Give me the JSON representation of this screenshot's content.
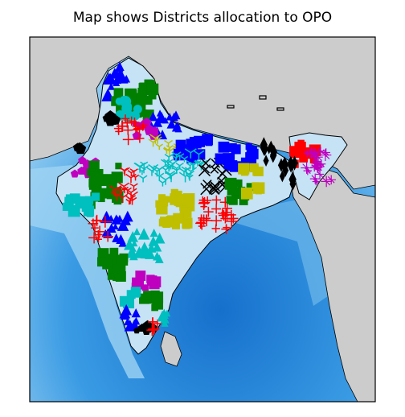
{
  "title": "Map shows Districts allocation to OPO",
  "colors": {
    "land": "#cccccc",
    "shallow_sea": "#b8dff5",
    "deep_sea": "#1a7fd6",
    "mid_sea": "#4fa8e6",
    "india_fill": "#c6e2f5",
    "frame": "#000000"
  },
  "marker_groups": [
    {
      "name": "green",
      "color": "#007f00"
    },
    {
      "name": "blue",
      "color": "#0000ff"
    },
    {
      "name": "red",
      "color": "#ff0000"
    },
    {
      "name": "cyan",
      "color": "#00bfbf"
    },
    {
      "name": "magenta",
      "color": "#bf00bf"
    },
    {
      "name": "yellow",
      "color": "#bfbf00"
    },
    {
      "name": "black",
      "color": "#000000"
    }
  ]
}
